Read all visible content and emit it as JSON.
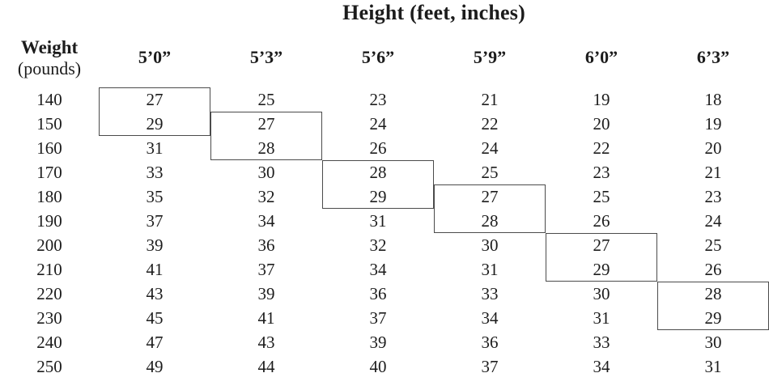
{
  "page": {
    "background": "#ffffff",
    "text_color": "#1c1c1c",
    "box_line_color": "#4b4b4b"
  },
  "chart_data": {
    "type": "table",
    "title": "Height (feet, inches)",
    "row_header": {
      "line1": "Weight",
      "line2": "(pounds)"
    },
    "columns": [
      "5’0”",
      "5’3”",
      "5’6”",
      "5’9”",
      "6’0”",
      "6’3”"
    ],
    "weights": [
      140,
      150,
      160,
      170,
      180,
      190,
      200,
      210,
      220,
      230,
      240,
      250
    ],
    "rows": [
      [
        27,
        25,
        23,
        21,
        19,
        18
      ],
      [
        29,
        27,
        24,
        22,
        20,
        19
      ],
      [
        31,
        28,
        26,
        24,
        22,
        20
      ],
      [
        33,
        30,
        28,
        25,
        23,
        21
      ],
      [
        35,
        32,
        29,
        27,
        25,
        23
      ],
      [
        37,
        34,
        31,
        28,
        26,
        24
      ],
      [
        39,
        36,
        32,
        30,
        27,
        25
      ],
      [
        41,
        37,
        34,
        31,
        29,
        26
      ],
      [
        43,
        39,
        36,
        33,
        30,
        28
      ],
      [
        45,
        41,
        37,
        34,
        31,
        29
      ],
      [
        47,
        43,
        39,
        36,
        33,
        30
      ],
      [
        49,
        44,
        40,
        37,
        34,
        31
      ]
    ],
    "highlight_boxes": [
      {
        "column": "5’0”",
        "column_index": 0,
        "weight_rows": [
          140,
          150
        ],
        "boxed_values": [
          27,
          29
        ]
      },
      {
        "column": "5’3”",
        "column_index": 1,
        "weight_rows": [
          150,
          160
        ],
        "boxed_values": [
          27,
          28
        ]
      },
      {
        "column": "5’6”",
        "column_index": 2,
        "weight_rows": [
          170,
          180
        ],
        "boxed_values": [
          28,
          29
        ]
      },
      {
        "column": "5’9”",
        "column_index": 3,
        "weight_rows": [
          180,
          190
        ],
        "boxed_values": [
          27,
          28
        ]
      },
      {
        "column": "6’0”",
        "column_index": 4,
        "weight_rows": [
          200,
          210
        ],
        "boxed_values": [
          27,
          29
        ]
      },
      {
        "column": "6’3”",
        "column_index": 5,
        "weight_rows": [
          220,
          230
        ],
        "boxed_values": [
          28,
          29
        ]
      }
    ]
  }
}
